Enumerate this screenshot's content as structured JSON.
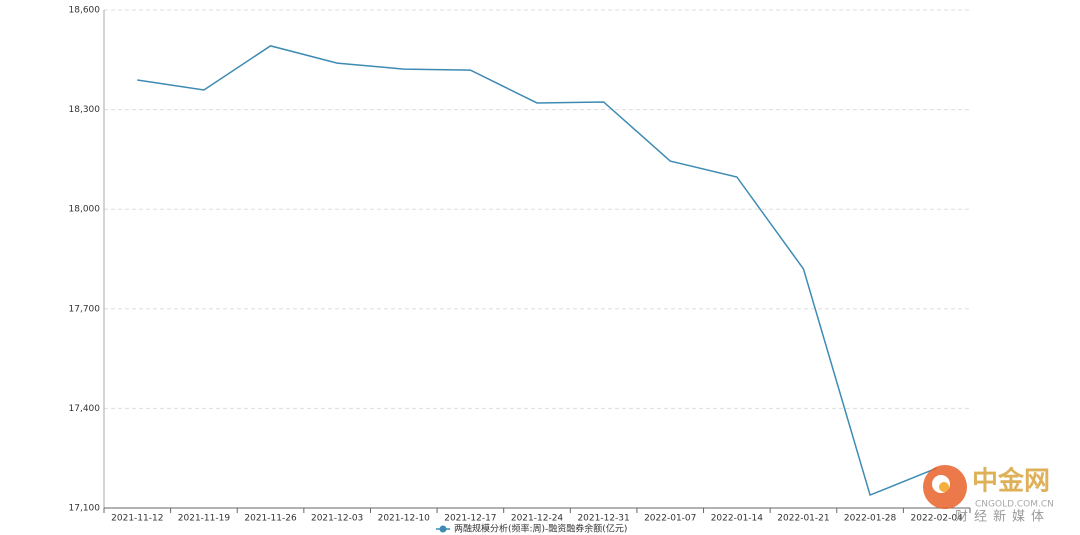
{
  "chart_data": {
    "type": "line",
    "categories": [
      "2021-11-12",
      "2021-11-19",
      "2021-11-26",
      "2021-12-03",
      "2021-12-10",
      "2021-12-17",
      "2021-12-24",
      "2021-12-31",
      "2022-01-07",
      "2022-01-14",
      "2022-01-21",
      "2022-01-28",
      "2022-02-04"
    ],
    "series": [
      {
        "name": "两融规模分析(频率:周)-融资融券余额(亿元)",
        "color": "#3d8bb3",
        "values": [
          18389,
          18359,
          18492,
          18440,
          18422,
          18419,
          18320,
          18323,
          18145,
          18097,
          17820,
          17139,
          17220
        ]
      }
    ],
    "ylim": [
      17100,
      18600
    ],
    "yticks": [
      {
        "value": 17100,
        "label": "17,100"
      },
      {
        "value": 17400,
        "label": "17,400"
      },
      {
        "value": 17700,
        "label": "17,700"
      },
      {
        "value": 18000,
        "label": "18,000"
      },
      {
        "value": 18300,
        "label": "18,300"
      },
      {
        "value": 18600,
        "label": "18,600"
      }
    ],
    "grid": true
  },
  "watermark": {
    "name": "中金网",
    "url": "CNGOLD.COM.CN",
    "slogan": "财经新媒体"
  }
}
